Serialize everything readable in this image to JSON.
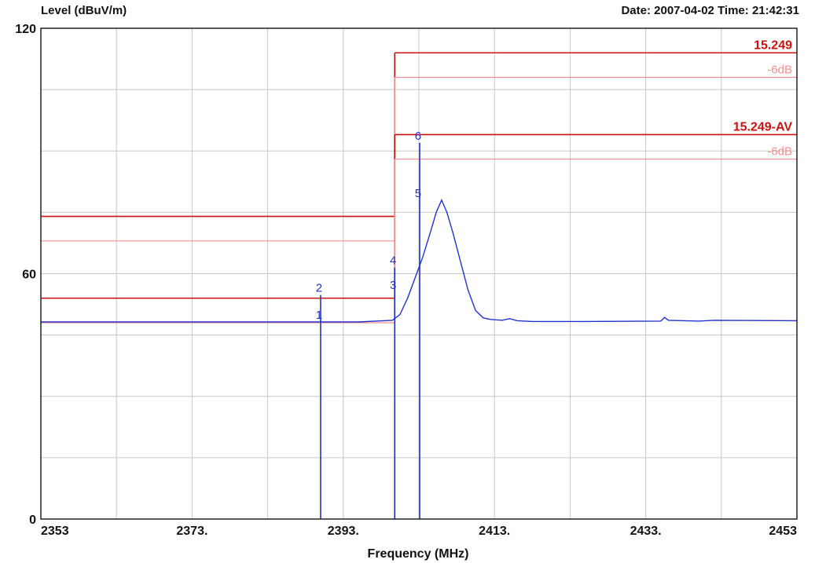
{
  "header": {
    "ylabel": "Level (dBuV/m)",
    "datetime": "Date: 2007-04-02  Time: 21:42:31"
  },
  "chart_data": {
    "type": "line",
    "xlabel": "Frequency (MHz)",
    "ylabel": "Level (dBuV/m)",
    "xlim": [
      2353,
      2453
    ],
    "ylim": [
      0,
      120
    ],
    "x_ticks": [
      2353,
      2373,
      2393,
      2413,
      2433,
      2453
    ],
    "x_tick_labels": [
      "2353",
      "2373.",
      "2393.",
      "2413.",
      "2433.",
      "2453"
    ],
    "y_tick_labels": [
      "0",
      "60",
      "120"
    ],
    "grid": true,
    "series": [
      {
        "color": "#2233cc",
        "points": [
          [
            2353,
            48.2
          ],
          [
            2370,
            48.2
          ],
          [
            2390,
            48.2
          ],
          [
            2395,
            48.2
          ],
          [
            2399.5,
            48.6
          ],
          [
            2400.5,
            50
          ],
          [
            2401.5,
            54
          ],
          [
            2402.5,
            59
          ],
          [
            2403.5,
            64
          ],
          [
            2404.5,
            70
          ],
          [
            2405.3,
            75
          ],
          [
            2406,
            78
          ],
          [
            2406.7,
            75
          ],
          [
            2407.5,
            70
          ],
          [
            2408.5,
            63
          ],
          [
            2409.5,
            56
          ],
          [
            2410.5,
            51
          ],
          [
            2411.5,
            49.2
          ],
          [
            2412.5,
            48.8
          ],
          [
            2414,
            48.6
          ],
          [
            2415,
            49
          ],
          [
            2416,
            48.5
          ],
          [
            2418,
            48.3
          ],
          [
            2425,
            48.3
          ],
          [
            2435,
            48.4
          ],
          [
            2435.5,
            49.3
          ],
          [
            2436,
            48.6
          ],
          [
            2440,
            48.4
          ],
          [
            2442,
            48.6
          ],
          [
            2453,
            48.5
          ]
        ]
      }
    ],
    "limit_lines": [
      {
        "label": "15.249",
        "color": "#cc1111",
        "segments": [
          [
            2353,
            2399.8,
            74
          ],
          [
            2399.8,
            2453,
            114
          ]
        ]
      },
      {
        "label": "-6dB",
        "color": "#f09090",
        "segments": [
          [
            2353,
            2399.8,
            68
          ],
          [
            2399.8,
            2453,
            108
          ]
        ]
      },
      {
        "label": "15.249-AV",
        "color": "#cc1111",
        "segments": [
          [
            2353,
            2399.8,
            54
          ],
          [
            2399.8,
            2453,
            94
          ]
        ]
      },
      {
        "label": "-6dB",
        "color": "#f09090",
        "segments": [
          [
            2353,
            2399.8,
            48
          ],
          [
            2399.8,
            2453,
            88
          ]
        ]
      }
    ],
    "limit_label_values": [
      114,
      108,
      94,
      88
    ],
    "markers": [
      {
        "label": "1",
        "x": 2390,
        "y": 48.2
      },
      {
        "label": "2",
        "x": 2390,
        "y": 54.8
      },
      {
        "label": "3",
        "x": 2399.8,
        "y": 55.5
      },
      {
        "label": "4",
        "x": 2399.8,
        "y": 61.5
      },
      {
        "label": "5",
        "x": 2403.1,
        "y": 78
      },
      {
        "label": "6",
        "x": 2403.1,
        "y": 92
      }
    ]
  }
}
